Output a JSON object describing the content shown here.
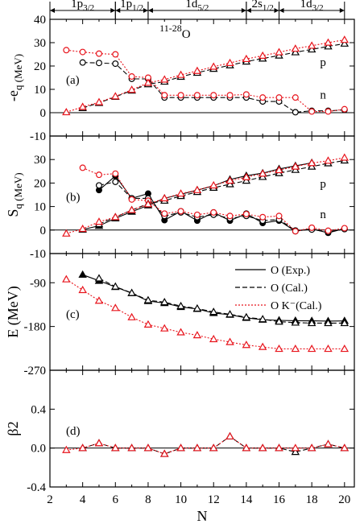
{
  "figure": {
    "nucleus_label": "11-28O",
    "xlabel": "N",
    "orbital_bands": [
      {
        "label": "1p3/2",
        "base": "1p",
        "sub": "3/2",
        "from": 2,
        "to": 6
      },
      {
        "label": "1p1/2",
        "base": "1p",
        "sub": "1/2",
        "from": 6,
        "to": 8
      },
      {
        "label": "1d5/2",
        "base": "1d",
        "sub": "5/2",
        "from": 8,
        "to": 14
      },
      {
        "label": "2s1/2",
        "base": "2s",
        "sub": "1/2",
        "from": 14,
        "to": 16
      },
      {
        "label": "1d3/2",
        "base": "1d",
        "sub": "3/2",
        "from": 16,
        "to": 20
      }
    ],
    "legend": [
      {
        "label": "O (Exp.)",
        "style": "solid",
        "color": "#000000"
      },
      {
        "label": "O (Cal.)",
        "style": "dashed",
        "color": "#000000"
      },
      {
        "label": "O K⁻(Cal.)",
        "style": "dotted",
        "color": "#e8141c"
      }
    ],
    "colors": {
      "exp": "#000000",
      "cal": "#000000",
      "kaon": "#e8141c"
    }
  },
  "chart_data": [
    {
      "type": "line",
      "panel": "(a)",
      "ylabel": "-e_q (MeV)",
      "xlim": [
        2,
        20.6
      ],
      "ylim": [
        -10,
        40
      ],
      "yticks": [
        -10,
        0,
        10,
        20,
        30,
        40
      ],
      "xticks": [
        2,
        4,
        6,
        8,
        10,
        12,
        14,
        16,
        18,
        20
      ],
      "annotations": [
        "p",
        "n"
      ],
      "series": [
        {
          "name": "n (Cal.)",
          "marker": "circle",
          "style": "dashed",
          "color": "#000000",
          "x": [
            4,
            5,
            6,
            7,
            8,
            9,
            10,
            11,
            12,
            13,
            14,
            15,
            16,
            17,
            18,
            19,
            20
          ],
          "y": [
            21.5,
            21.3,
            21.0,
            14.5,
            14.5,
            6.5,
            6.5,
            6.5,
            6.5,
            6.5,
            6.5,
            4.8,
            4.8,
            0.2,
            0.8,
            0.8,
            1.2
          ]
        },
        {
          "name": "n (K⁻ Cal.)",
          "marker": "circle",
          "style": "dotted",
          "color": "#e8141c",
          "x": [
            3,
            4,
            5,
            6,
            7,
            8,
            9,
            10,
            11,
            12,
            13,
            14,
            15,
            16,
            17,
            18,
            19,
            20
          ],
          "y": [
            26.8,
            26.0,
            25.3,
            25.0,
            15.5,
            15.0,
            7.5,
            7.5,
            7.5,
            7.5,
            7.5,
            7.8,
            6.5,
            6.5,
            6.5,
            0.5,
            0.5,
            1.5
          ]
        },
        {
          "name": "p (Cal.)",
          "marker": "triangle",
          "style": "dashed",
          "color": "#000000",
          "x": [
            4,
            5,
            6,
            7,
            8,
            9,
            10,
            11,
            12,
            13,
            14,
            15,
            16,
            17,
            18,
            19,
            20
          ],
          "y": [
            2.0,
            4.2,
            6.8,
            9.5,
            12.2,
            13.3,
            15.4,
            17.1,
            18.8,
            20.3,
            21.9,
            23.2,
            24.5,
            25.9,
            27.1,
            28.4,
            29.6
          ]
        },
        {
          "name": "p (K⁻ Cal.)",
          "marker": "triangle",
          "style": "dotted",
          "color": "#e8141c",
          "x": [
            3,
            4,
            5,
            6,
            7,
            8,
            9,
            10,
            11,
            12,
            13,
            14,
            15,
            16,
            17,
            18,
            19,
            20
          ],
          "y": [
            0.2,
            2.5,
            4.5,
            7.0,
            9.8,
            12.8,
            14.2,
            16.2,
            17.9,
            19.7,
            21.3,
            23.0,
            24.4,
            25.9,
            27.4,
            28.7,
            30.0,
            31.2
          ]
        }
      ]
    },
    {
      "type": "line",
      "panel": "(b)",
      "ylabel": "S_q (MeV)",
      "xlim": [
        2,
        20.6
      ],
      "ylim": [
        -10,
        40
      ],
      "yticks": [
        -10,
        0,
        10,
        20,
        30
      ],
      "xticks": [
        2,
        4,
        6,
        8,
        10,
        12,
        14,
        16,
        18,
        20
      ],
      "annotations": [
        "p",
        "n"
      ],
      "series": [
        {
          "name": "n (Exp.)",
          "marker": "circle-filled",
          "style": "solid",
          "color": "#000000",
          "x": [
            5,
            6,
            7,
            8,
            9,
            10,
            11,
            12,
            13,
            14,
            15,
            16,
            17,
            18,
            19,
            20
          ],
          "y": [
            17.0,
            23.0,
            13.5,
            15.5,
            4.2,
            8.0,
            4.0,
            7.5,
            4.0,
            7.0,
            3.0,
            4.0,
            -0.5,
            0.5,
            -1.2,
            0.6
          ]
        },
        {
          "name": "n (Cal.)",
          "marker": "circle",
          "style": "dashed",
          "color": "#000000",
          "x": [
            5,
            6,
            7,
            8,
            9,
            10,
            11,
            12,
            13,
            14,
            15,
            16,
            17,
            18,
            19,
            20
          ],
          "y": [
            19.0,
            20.5,
            13.5,
            13.5,
            6.0,
            7.5,
            5.5,
            6.5,
            5.0,
            6.0,
            4.0,
            4.5,
            -0.2,
            0.2,
            -0.8,
            0.4
          ]
        },
        {
          "name": "n (K⁻ Cal.)",
          "marker": "circle",
          "style": "dotted",
          "color": "#e8141c",
          "x": [
            4,
            5,
            6,
            7,
            8,
            9,
            10,
            11,
            12,
            13,
            14,
            15,
            16,
            17,
            18,
            19,
            20
          ],
          "y": [
            26.5,
            23.5,
            24.0,
            13.0,
            12.5,
            7.0,
            8.0,
            6.5,
            7.5,
            6.0,
            6.8,
            5.5,
            6.0,
            -0.5,
            1.0,
            -0.3,
            0.8
          ]
        },
        {
          "name": "p (Exp.)",
          "marker": "triangle-filled",
          "style": "solid",
          "color": "#000000",
          "x": [
            4,
            5,
            6,
            7,
            8,
            9,
            10,
            11,
            12,
            13,
            14,
            15,
            16,
            17,
            18
          ],
          "y": [
            0.2,
            1.8,
            5.0,
            7.8,
            10.5,
            13.5,
            15.2,
            17.0,
            18.8,
            21.5,
            23.1,
            24.2,
            26.0,
            27.3,
            28.6
          ]
        },
        {
          "name": "p (Cal.)",
          "marker": "triangle",
          "style": "dashed",
          "color": "#000000",
          "x": [
            5,
            6,
            7,
            8,
            9,
            10,
            11,
            12,
            13,
            14,
            15,
            16,
            17,
            18,
            19,
            20
          ],
          "y": [
            2.5,
            5.5,
            8.5,
            11.2,
            12.5,
            14.5,
            16.2,
            18.0,
            19.5,
            21.0,
            22.6,
            24.2,
            25.6,
            27.0,
            28.4,
            29.6
          ]
        },
        {
          "name": "p (K⁻ Cal.)",
          "marker": "triangle",
          "style": "dotted",
          "color": "#e8141c",
          "x": [
            3,
            4,
            5,
            6,
            7,
            8,
            9,
            10,
            11,
            12,
            13,
            14,
            15,
            16,
            17,
            18,
            19,
            20
          ],
          "y": [
            -1.5,
            0.5,
            3.5,
            5.5,
            8.5,
            11.0,
            13.5,
            15.5,
            17.0,
            19.0,
            21.0,
            22.5,
            24.0,
            25.5,
            27.0,
            28.5,
            29.5,
            30.8
          ]
        }
      ]
    },
    {
      "type": "line",
      "panel": "(c)",
      "ylabel": "E (MeV)",
      "xlim": [
        2,
        20.6
      ],
      "ylim": [
        -270,
        -30
      ],
      "yticks": [
        -270,
        -180,
        -90
      ],
      "xticks": [
        2,
        4,
        6,
        8,
        10,
        12,
        14,
        16,
        18,
        20
      ],
      "series": [
        {
          "name": "O (Exp.)",
          "marker": "triangle-filled",
          "style": "solid",
          "color": "#000000",
          "x": [
            4,
            5,
            6,
            7,
            8,
            9,
            10,
            11,
            12,
            13,
            14,
            15,
            16,
            17,
            18,
            19,
            20
          ],
          "y": [
            -73.5,
            -86,
            -98.7,
            -111.4,
            -127.6,
            -131.8,
            -139.8,
            -143.8,
            -152.3,
            -155.8,
            -162.3,
            -166.0,
            -167.3,
            -168.0,
            -168.4,
            -168.9,
            -168.5
          ]
        },
        {
          "name": "O (Cal.)",
          "marker": "triangle",
          "style": "dashed",
          "color": "#000000",
          "x": [
            5,
            6,
            7,
            8,
            9,
            10,
            11,
            12,
            13,
            14,
            15,
            16,
            17,
            18,
            19,
            20
          ],
          "y": [
            -81,
            -98,
            -111,
            -126,
            -130,
            -138,
            -143,
            -150,
            -155,
            -161,
            -165,
            -170,
            -172,
            -173,
            -173,
            -173
          ]
        },
        {
          "name": "O K⁻(Cal.)",
          "marker": "triangle",
          "style": "dotted",
          "color": "#e8141c",
          "x": [
            3,
            4,
            5,
            6,
            7,
            8,
            9,
            10,
            11,
            12,
            13,
            14,
            15,
            16,
            17,
            18,
            19,
            20
          ],
          "y": [
            -83,
            -105,
            -127,
            -142,
            -161,
            -176,
            -184,
            -192,
            -198,
            -206,
            -212,
            -218,
            -222,
            -226,
            -226,
            -226,
            -226,
            -226
          ]
        }
      ]
    },
    {
      "type": "line",
      "panel": "(d)",
      "ylabel": "β2",
      "xlim": [
        2,
        20.6
      ],
      "ylim": [
        -0.4,
        0.8
      ],
      "yticks": [
        -0.4,
        0.0,
        0.4
      ],
      "ytick_labels": [
        "-0.4",
        "0.0",
        "0.4"
      ],
      "xticks": [
        2,
        4,
        6,
        8,
        10,
        12,
        14,
        16,
        18,
        20
      ],
      "xtick_labels": [
        "2",
        "4",
        "6",
        "8",
        "10",
        "12",
        "14",
        "16",
        "18",
        "20"
      ],
      "series": [
        {
          "name": "O (Cal.)",
          "marker": "triangle",
          "style": "dashed",
          "color": "#000000",
          "x": [
            4,
            5,
            6,
            7,
            8,
            9,
            10,
            11,
            12,
            13,
            14,
            15,
            16,
            17,
            18,
            19,
            20
          ],
          "y": [
            0,
            0.05,
            0,
            0,
            0,
            -0.06,
            0,
            0,
            0,
            0.12,
            0,
            0,
            0,
            -0.04,
            0,
            0.04,
            0
          ]
        },
        {
          "name": "O K⁻(Cal.)",
          "marker": "triangle",
          "style": "dotted",
          "color": "#e8141c",
          "x": [
            3,
            4,
            5,
            6,
            7,
            8,
            9,
            10,
            11,
            12,
            13,
            14,
            15,
            16,
            17,
            18,
            19,
            20
          ],
          "y": [
            -0.02,
            0,
            0.05,
            0,
            0,
            0,
            -0.06,
            0,
            0,
            0,
            0.12,
            0,
            0,
            0,
            0,
            0,
            0.04,
            0
          ]
        }
      ]
    }
  ]
}
